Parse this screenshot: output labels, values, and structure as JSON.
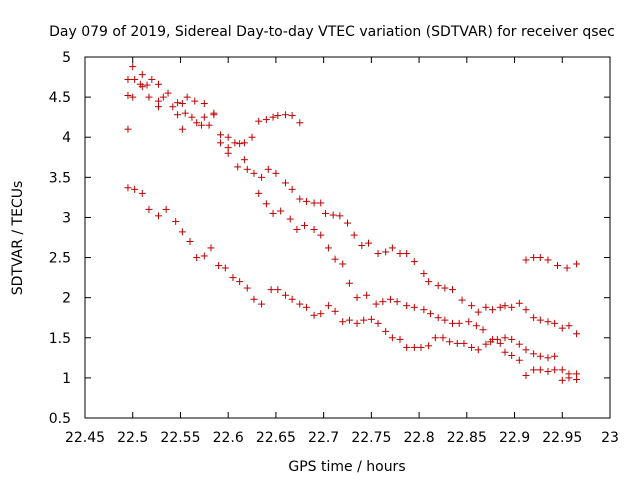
{
  "chart_data": {
    "type": "scatter",
    "title": "Day 079 of 2019, Sidereal Day-to-day VTEC variation (SDTVAR) for receiver qsec",
    "xlabel": "GPS time / hours",
    "ylabel": "SDTVAR / TECUs",
    "xlim": [
      22.45,
      23.0
    ],
    "ylim": [
      0.5,
      5.0
    ],
    "grid": false,
    "legend": "none",
    "marker": "+",
    "colors": {
      "marker": "#c00000",
      "axis": "#000000",
      "background": "#ffffff"
    },
    "x_ticks": [
      "22.45",
      "22.5",
      "22.55",
      "22.6",
      "22.65",
      "22.7",
      "22.75",
      "22.8",
      "22.85",
      "22.9",
      "22.95",
      "23"
    ],
    "y_ticks": [
      "0.5",
      "1",
      "1.5",
      "2",
      "2.5",
      "3",
      "3.5",
      "4",
      "4.5",
      "5"
    ],
    "series": [
      {
        "name": "SDTVAR",
        "points": [
          [
            22.495,
            4.72
          ],
          [
            22.502,
            4.72
          ],
          [
            22.5,
            4.88
          ],
          [
            22.51,
            4.78
          ],
          [
            22.52,
            4.72
          ],
          [
            22.527,
            4.66
          ],
          [
            22.508,
            4.66
          ],
          [
            22.51,
            4.63
          ],
          [
            22.515,
            4.65
          ],
          [
            22.495,
            4.52
          ],
          [
            22.5,
            4.5
          ],
          [
            22.517,
            4.5
          ],
          [
            22.527,
            4.45
          ],
          [
            22.532,
            4.5
          ],
          [
            22.537,
            4.55
          ],
          [
            22.527,
            4.38
          ],
          [
            22.542,
            4.38
          ],
          [
            22.547,
            4.43
          ],
          [
            22.552,
            4.42
          ],
          [
            22.557,
            4.5
          ],
          [
            22.565,
            4.45
          ],
          [
            22.575,
            4.42
          ],
          [
            22.547,
            4.28
          ],
          [
            22.555,
            4.3
          ],
          [
            22.562,
            4.25
          ],
          [
            22.567,
            4.18
          ],
          [
            22.575,
            4.25
          ],
          [
            22.585,
            4.28
          ],
          [
            22.585,
            4.3
          ],
          [
            22.572,
            4.15
          ],
          [
            22.58,
            4.15
          ],
          [
            22.495,
            4.1
          ],
          [
            22.552,
            4.1
          ],
          [
            22.592,
            4.03
          ],
          [
            22.592,
            3.93
          ],
          [
            22.6,
            4.0
          ],
          [
            22.6,
            3.87
          ],
          [
            22.6,
            3.8
          ],
          [
            22.607,
            3.93
          ],
          [
            22.612,
            3.92
          ],
          [
            22.617,
            3.93
          ],
          [
            22.625,
            4.0
          ],
          [
            22.632,
            4.2
          ],
          [
            22.64,
            4.22
          ],
          [
            22.647,
            4.25
          ],
          [
            22.652,
            4.27
          ],
          [
            22.66,
            4.28
          ],
          [
            22.667,
            4.27
          ],
          [
            22.675,
            4.18
          ],
          [
            22.61,
            3.63
          ],
          [
            22.617,
            3.72
          ],
          [
            22.62,
            3.6
          ],
          [
            22.627,
            3.55
          ],
          [
            22.635,
            3.5
          ],
          [
            22.642,
            3.6
          ],
          [
            22.65,
            3.55
          ],
          [
            22.66,
            3.43
          ],
          [
            22.667,
            3.35
          ],
          [
            22.675,
            3.23
          ],
          [
            22.682,
            3.2
          ],
          [
            22.69,
            3.18
          ],
          [
            22.697,
            3.18
          ],
          [
            22.702,
            3.05
          ],
          [
            22.71,
            3.03
          ],
          [
            22.717,
            3.02
          ],
          [
            22.725,
            2.93
          ],
          [
            22.732,
            2.78
          ],
          [
            22.74,
            2.65
          ],
          [
            22.747,
            2.68
          ],
          [
            22.757,
            2.55
          ],
          [
            22.765,
            2.57
          ],
          [
            22.772,
            2.62
          ],
          [
            22.78,
            2.55
          ],
          [
            22.787,
            2.55
          ],
          [
            22.795,
            2.45
          ],
          [
            22.805,
            2.3
          ],
          [
            22.81,
            2.2
          ],
          [
            22.82,
            2.15
          ],
          [
            22.827,
            2.12
          ],
          [
            22.835,
            2.1
          ],
          [
            22.845,
            1.97
          ],
          [
            22.855,
            1.9
          ],
          [
            22.862,
            1.82
          ],
          [
            22.87,
            1.88
          ],
          [
            22.877,
            1.85
          ],
          [
            22.885,
            1.88
          ],
          [
            22.89,
            1.9
          ],
          [
            22.897,
            1.88
          ],
          [
            22.905,
            1.93
          ],
          [
            22.912,
            1.85
          ],
          [
            22.92,
            1.75
          ],
          [
            22.927,
            1.72
          ],
          [
            22.935,
            1.7
          ],
          [
            22.942,
            1.68
          ],
          [
            22.95,
            1.62
          ],
          [
            22.957,
            1.65
          ],
          [
            22.965,
            1.55
          ],
          [
            22.912,
            2.47
          ],
          [
            22.92,
            2.5
          ],
          [
            22.927,
            2.5
          ],
          [
            22.935,
            2.47
          ],
          [
            22.945,
            2.4
          ],
          [
            22.955,
            2.37
          ],
          [
            22.965,
            2.42
          ],
          [
            22.632,
            3.3
          ],
          [
            22.64,
            3.17
          ],
          [
            22.647,
            3.05
          ],
          [
            22.655,
            3.08
          ],
          [
            22.665,
            2.98
          ],
          [
            22.672,
            2.85
          ],
          [
            22.68,
            2.9
          ],
          [
            22.69,
            2.85
          ],
          [
            22.697,
            2.78
          ],
          [
            22.705,
            2.62
          ],
          [
            22.712,
            2.48
          ],
          [
            22.72,
            2.42
          ],
          [
            22.727,
            2.18
          ],
          [
            22.735,
            2.0
          ],
          [
            22.745,
            2.03
          ],
          [
            22.755,
            1.92
          ],
          [
            22.762,
            1.95
          ],
          [
            22.77,
            1.98
          ],
          [
            22.777,
            1.95
          ],
          [
            22.787,
            1.9
          ],
          [
            22.795,
            1.88
          ],
          [
            22.805,
            1.85
          ],
          [
            22.812,
            1.8
          ],
          [
            22.82,
            1.75
          ],
          [
            22.827,
            1.72
          ],
          [
            22.835,
            1.68
          ],
          [
            22.842,
            1.68
          ],
          [
            22.852,
            1.7
          ],
          [
            22.86,
            1.65
          ],
          [
            22.867,
            1.6
          ],
          [
            22.875,
            1.45
          ],
          [
            22.882,
            1.48
          ],
          [
            22.89,
            1.5
          ],
          [
            22.897,
            1.48
          ],
          [
            22.905,
            1.42
          ],
          [
            22.912,
            1.35
          ],
          [
            22.92,
            1.3
          ],
          [
            22.927,
            1.27
          ],
          [
            22.935,
            1.25
          ],
          [
            22.942,
            1.27
          ],
          [
            22.95,
            1.1
          ],
          [
            22.957,
            1.05
          ],
          [
            22.965,
            1.05
          ],
          [
            22.495,
            3.37
          ],
          [
            22.502,
            3.35
          ],
          [
            22.51,
            3.3
          ],
          [
            22.517,
            3.1
          ],
          [
            22.527,
            3.02
          ],
          [
            22.535,
            3.1
          ],
          [
            22.545,
            2.95
          ],
          [
            22.552,
            2.82
          ],
          [
            22.56,
            2.7
          ],
          [
            22.567,
            2.5
          ],
          [
            22.575,
            2.52
          ],
          [
            22.582,
            2.62
          ],
          [
            22.59,
            2.4
          ],
          [
            22.597,
            2.37
          ],
          [
            22.605,
            2.25
          ],
          [
            22.612,
            2.2
          ],
          [
            22.62,
            2.12
          ],
          [
            22.627,
            1.98
          ],
          [
            22.635,
            1.92
          ],
          [
            22.645,
            2.1
          ],
          [
            22.652,
            2.1
          ],
          [
            22.66,
            2.03
          ],
          [
            22.667,
            1.98
          ],
          [
            22.675,
            1.92
          ],
          [
            22.682,
            1.88
          ],
          [
            22.69,
            1.78
          ],
          [
            22.697,
            1.8
          ],
          [
            22.705,
            1.9
          ],
          [
            22.712,
            1.83
          ],
          [
            22.72,
            1.7
          ],
          [
            22.727,
            1.72
          ],
          [
            22.735,
            1.68
          ],
          [
            22.742,
            1.72
          ],
          [
            22.75,
            1.73
          ],
          [
            22.757,
            1.68
          ],
          [
            22.765,
            1.58
          ],
          [
            22.772,
            1.5
          ],
          [
            22.78,
            1.48
          ],
          [
            22.787,
            1.38
          ],
          [
            22.795,
            1.38
          ],
          [
            22.802,
            1.38
          ],
          [
            22.81,
            1.4
          ],
          [
            22.817,
            1.5
          ],
          [
            22.825,
            1.5
          ],
          [
            22.832,
            1.45
          ],
          [
            22.84,
            1.43
          ],
          [
            22.847,
            1.43
          ],
          [
            22.855,
            1.38
          ],
          [
            22.862,
            1.35
          ],
          [
            22.87,
            1.42
          ],
          [
            22.877,
            1.48
          ],
          [
            22.885,
            1.43
          ],
          [
            22.89,
            1.32
          ],
          [
            22.897,
            1.28
          ],
          [
            22.905,
            1.22
          ],
          [
            22.912,
            1.03
          ],
          [
            22.92,
            1.1
          ],
          [
            22.927,
            1.1
          ],
          [
            22.935,
            1.08
          ],
          [
            22.942,
            1.1
          ],
          [
            22.95,
            0.97
          ],
          [
            22.957,
            1.0
          ],
          [
            22.965,
            0.98
          ]
        ]
      }
    ]
  }
}
